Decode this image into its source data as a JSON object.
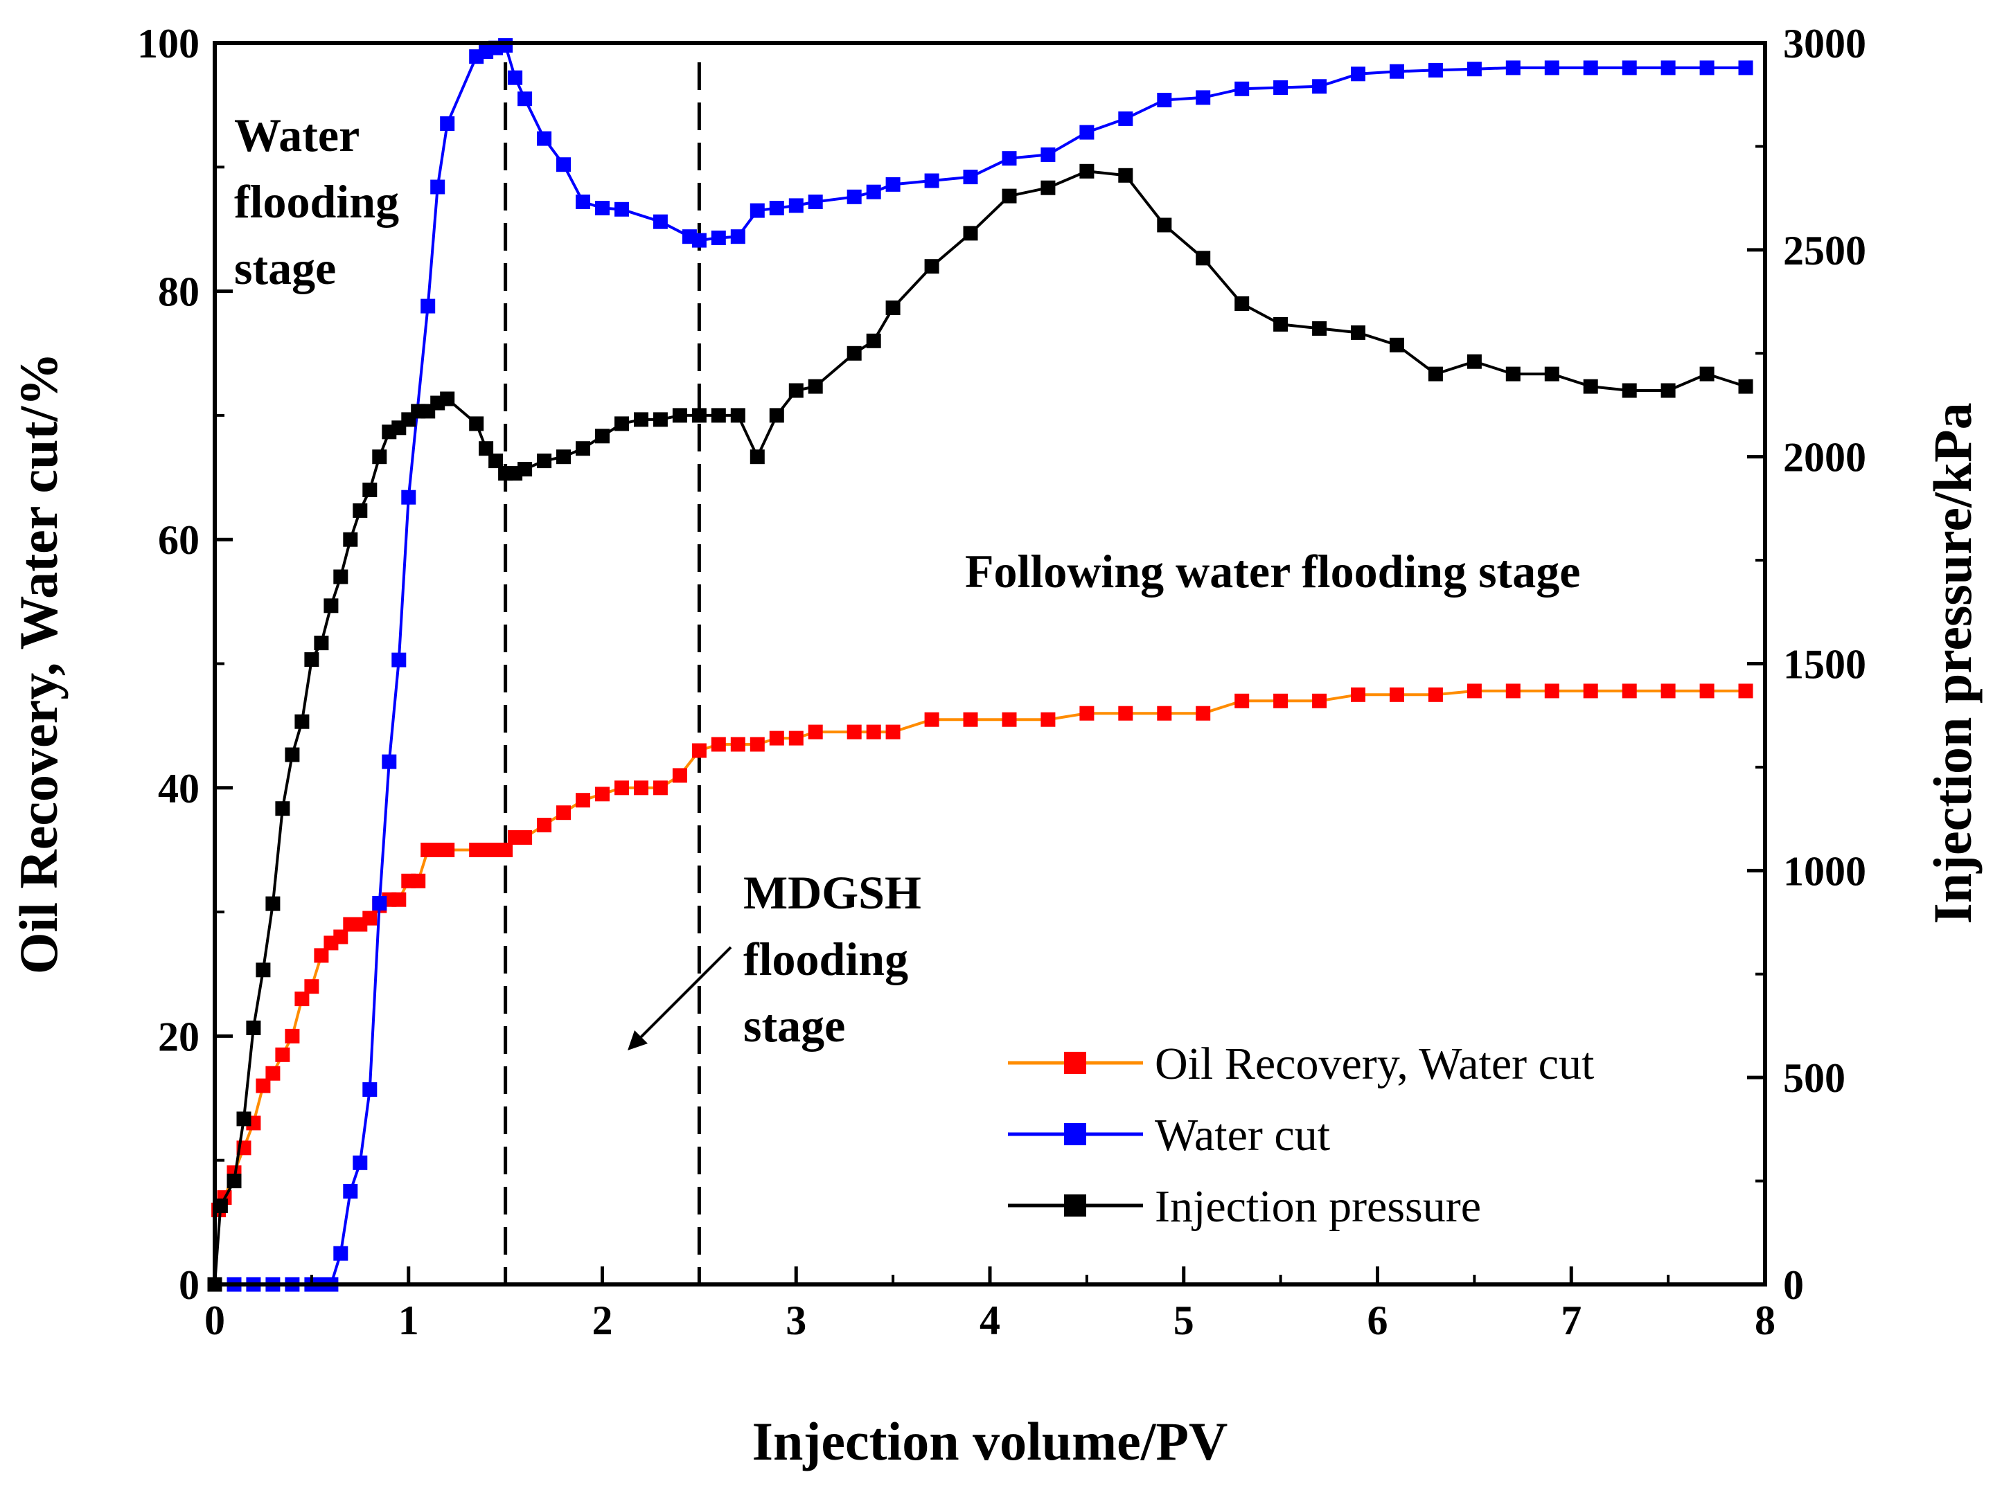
{
  "chart_data": {
    "type": "line",
    "xlabel": "Injection volume/PV",
    "ylabel_left": "Oil Recovery, Water cut/%",
    "ylabel_right": "Injection pressure/kPa",
    "xlim": [
      0,
      8
    ],
    "ylim_left": [
      0,
      100
    ],
    "ylim_right": [
      0,
      3000
    ],
    "x_ticks": [
      "0",
      "1",
      "2",
      "3",
      "4",
      "5",
      "6",
      "7",
      "8"
    ],
    "y_left_ticks": [
      "0",
      "20",
      "40",
      "60",
      "80",
      "100"
    ],
    "y_right_ticks": [
      "0",
      "500",
      "1000",
      "1500",
      "2000",
      "2500",
      "3000"
    ],
    "stage_boundaries": [
      1.5,
      2.5
    ],
    "annotations": {
      "water_flooding": [
        "Water",
        "flooding",
        "stage"
      ],
      "following": "Following water flooding stage",
      "mdgsh": [
        "MDGSH",
        "flooding",
        "stage"
      ]
    },
    "series": [
      {
        "name": "Oil Recovery, Water cut",
        "axis": "left",
        "color": "#ff0000",
        "line_color": "#ff8c00",
        "x": [
          0.02,
          0.05,
          0.1,
          0.15,
          0.2,
          0.25,
          0.3,
          0.35,
          0.4,
          0.45,
          0.5,
          0.55,
          0.6,
          0.65,
          0.7,
          0.75,
          0.8,
          0.85,
          0.9,
          0.95,
          1.0,
          1.05,
          1.1,
          1.15,
          1.2,
          1.35,
          1.4,
          1.45,
          1.5,
          1.55,
          1.6,
          1.7,
          1.8,
          1.9,
          2.0,
          2.1,
          2.2,
          2.3,
          2.4,
          2.5,
          2.6,
          2.7,
          2.8,
          2.9,
          3.0,
          3.1,
          3.3,
          3.4,
          3.5,
          3.7,
          3.9,
          4.1,
          4.3,
          4.5,
          4.7,
          4.9,
          5.1,
          5.3,
          5.5,
          5.7,
          5.9,
          6.1,
          6.3,
          6.5,
          6.7,
          6.9,
          7.1,
          7.3,
          7.5,
          7.7,
          7.9
        ],
        "values": [
          6,
          7,
          9,
          11,
          13,
          16,
          17,
          18.5,
          20,
          23,
          24,
          26.5,
          27.5,
          28,
          29,
          29,
          29.5,
          30.5,
          31,
          31,
          32.5,
          32.5,
          35,
          35,
          35,
          35,
          35,
          35,
          35,
          36,
          36,
          37,
          38,
          39,
          39.5,
          40,
          40,
          40,
          41,
          43,
          43.5,
          43.5,
          43.5,
          44,
          44,
          44.5,
          44.5,
          44.5,
          44.5,
          45.5,
          45.5,
          45.5,
          45.5,
          46,
          46,
          46,
          46,
          47,
          47,
          47,
          47.5,
          47.5,
          47.5,
          47.8,
          47.8,
          47.8,
          47.8,
          47.8,
          47.8,
          47.8,
          47.8
        ]
      },
      {
        "name": "Water cut",
        "axis": "left",
        "color": "#0000ff",
        "line_color": "#0000ff",
        "x": [
          0.0,
          0.1,
          0.2,
          0.3,
          0.4,
          0.5,
          0.55,
          0.6,
          0.65,
          0.7,
          0.75,
          0.8,
          0.85,
          0.9,
          0.95,
          1.0,
          1.1,
          1.15,
          1.2,
          1.35,
          1.4,
          1.45,
          1.5,
          1.55,
          1.6,
          1.7,
          1.8,
          1.9,
          2.0,
          2.1,
          2.3,
          2.45,
          2.5,
          2.6,
          2.7,
          2.8,
          2.9,
          3.0,
          3.1,
          3.3,
          3.4,
          3.5,
          3.7,
          3.9,
          4.1,
          4.3,
          4.5,
          4.7,
          4.9,
          5.1,
          5.3,
          5.5,
          5.7,
          5.9,
          6.1,
          6.3,
          6.5,
          6.7,
          6.9,
          7.1,
          7.3,
          7.5,
          7.7,
          7.9
        ],
        "values": [
          0,
          0,
          0,
          0,
          0,
          0,
          0,
          0,
          2.5,
          7.5,
          9.8,
          15.7,
          30.7,
          42.1,
          50.3,
          63.4,
          78.8,
          88.4,
          93.5,
          98.9,
          99.3,
          99.6,
          99.8,
          97.2,
          95.5,
          92.3,
          90.2,
          87.2,
          86.7,
          86.6,
          85.6,
          84.4,
          84.1,
          84.3,
          84.4,
          86.5,
          86.7,
          86.9,
          87.2,
          87.6,
          88.0,
          88.6,
          88.9,
          89.2,
          90.7,
          91.0,
          92.8,
          93.9,
          95.4,
          95.6,
          96.3,
          96.4,
          96.5,
          97.5,
          97.7,
          97.8,
          97.9,
          98.0,
          98.0,
          98.0,
          98.0,
          98.0,
          98.0,
          98.0
        ]
      },
      {
        "name": "Injection pressure",
        "axis": "right",
        "color": "#000000",
        "line_color": "#000000",
        "x": [
          0.0,
          0.03,
          0.1,
          0.15,
          0.2,
          0.25,
          0.3,
          0.35,
          0.4,
          0.45,
          0.5,
          0.55,
          0.6,
          0.65,
          0.7,
          0.75,
          0.8,
          0.85,
          0.9,
          0.95,
          1.0,
          1.05,
          1.1,
          1.15,
          1.2,
          1.35,
          1.4,
          1.45,
          1.5,
          1.55,
          1.6,
          1.7,
          1.8,
          1.9,
          2.0,
          2.1,
          2.2,
          2.3,
          2.4,
          2.5,
          2.6,
          2.7,
          2.8,
          2.9,
          3.0,
          3.1,
          3.3,
          3.4,
          3.5,
          3.7,
          3.9,
          4.1,
          4.3,
          4.5,
          4.7,
          4.9,
          5.1,
          5.3,
          5.5,
          5.7,
          5.9,
          6.1,
          6.3,
          6.5,
          6.7,
          6.9,
          7.1,
          7.3,
          7.5,
          7.7,
          7.9
        ],
        "values": [
          0,
          190,
          250,
          400,
          620,
          760,
          920,
          1150,
          1280,
          1360,
          1510,
          1550,
          1640,
          1710,
          1800,
          1870,
          1920,
          2000,
          2060,
          2070,
          2090,
          2110,
          2110,
          2130,
          2140,
          2080,
          2020,
          1990,
          1960,
          1960,
          1970,
          1990,
          2000,
          2020,
          2050,
          2080,
          2090,
          2090,
          2100,
          2100,
          2100,
          2100,
          2000,
          2100,
          2160,
          2170,
          2250,
          2280,
          2360,
          2460,
          2540,
          2630,
          2650,
          2690,
          2680,
          2560,
          2480,
          2370,
          2320,
          2310,
          2300,
          2270,
          2200,
          2230,
          2200,
          2200,
          2170,
          2160,
          2160,
          2200,
          2170
        ]
      }
    ]
  }
}
